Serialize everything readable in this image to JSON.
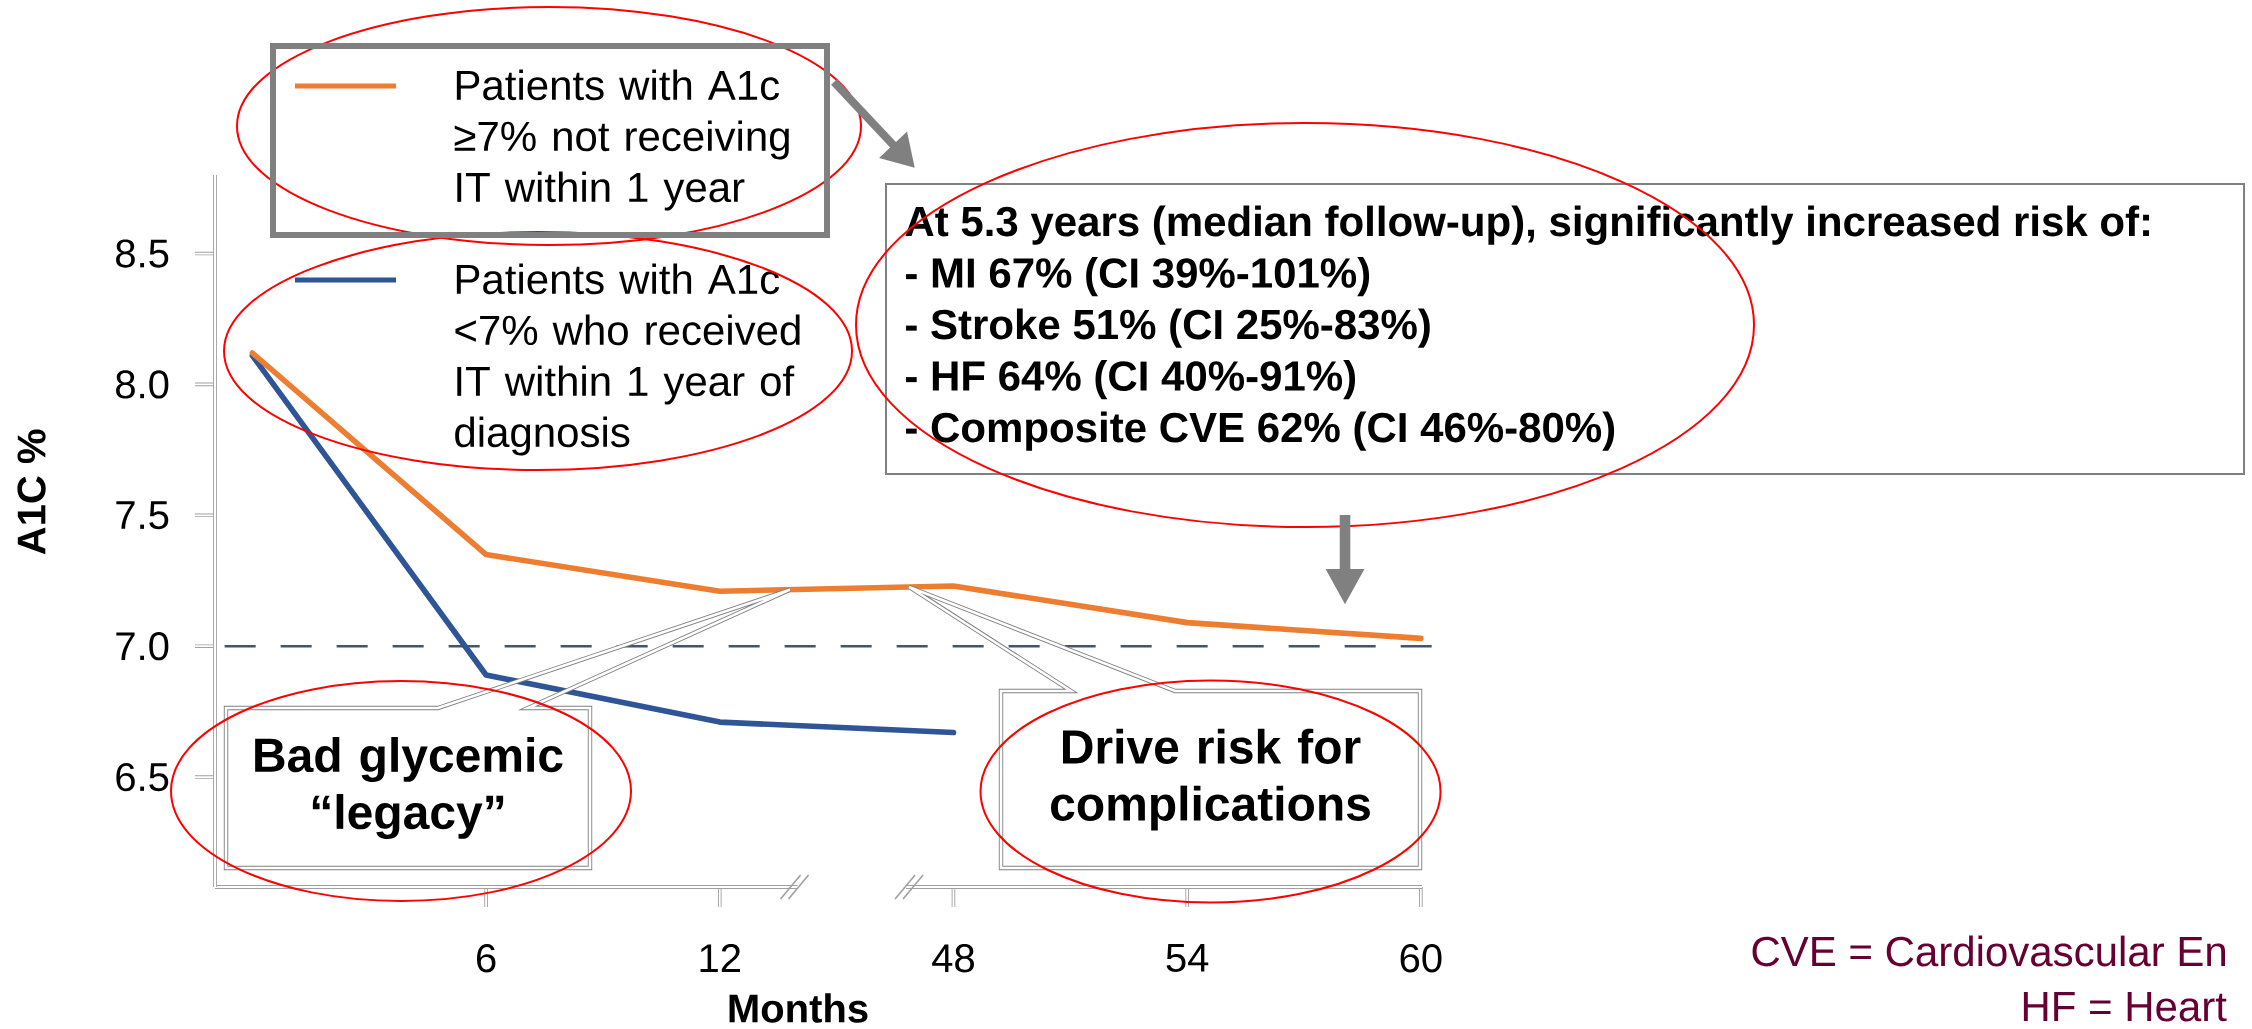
{
  "chart_data": {
    "type": "line",
    "categories": [
      null,
      "6",
      "12",
      "48",
      "54",
      "60"
    ],
    "series": [
      {
        "name": "Patients with A1c ≥7% not receiving IT within 1 year",
        "color": "#ed7d31",
        "values": [
          8.12,
          7.35,
          7.21,
          7.23,
          7.09,
          7.03
        ]
      },
      {
        "name": "Patients with A1c <7% who received IT within 1 year of diagnosis",
        "color": "#2f5597",
        "values": [
          8.11,
          6.89,
          6.71,
          6.67,
          null,
          null
        ]
      }
    ],
    "xlabel": "Months",
    "ylabel": "A1C %",
    "ylim": [
      6.08,
      8.8
    ],
    "yticks": [
      6.5,
      {
        "value": 7,
        "label": "7.0"
      },
      7.5,
      {
        "value": 8,
        "label": "8.0"
      },
      8.5
    ],
    "ref_lines": [
      {
        "axis": "y",
        "value": 7,
        "color": "#44546a",
        "line_style": "dashed"
      }
    ],
    "legend": "top left",
    "annotations": [
      "Bad glycemic “legacy”",
      "Drive risk for complications",
      "At 5.3 years (median follow-up), significantly increased risk of:",
      "- MI 67% (CI 39%-101%)",
      "- Stroke 51% (CI 25%-83%)",
      "- HF 64% (CI 40%-91%)",
      "- Composite CVE 62% (CI 46%-80%)",
      "CVE = Cardiovascular En",
      "HF = Heart"
    ]
  }
}
